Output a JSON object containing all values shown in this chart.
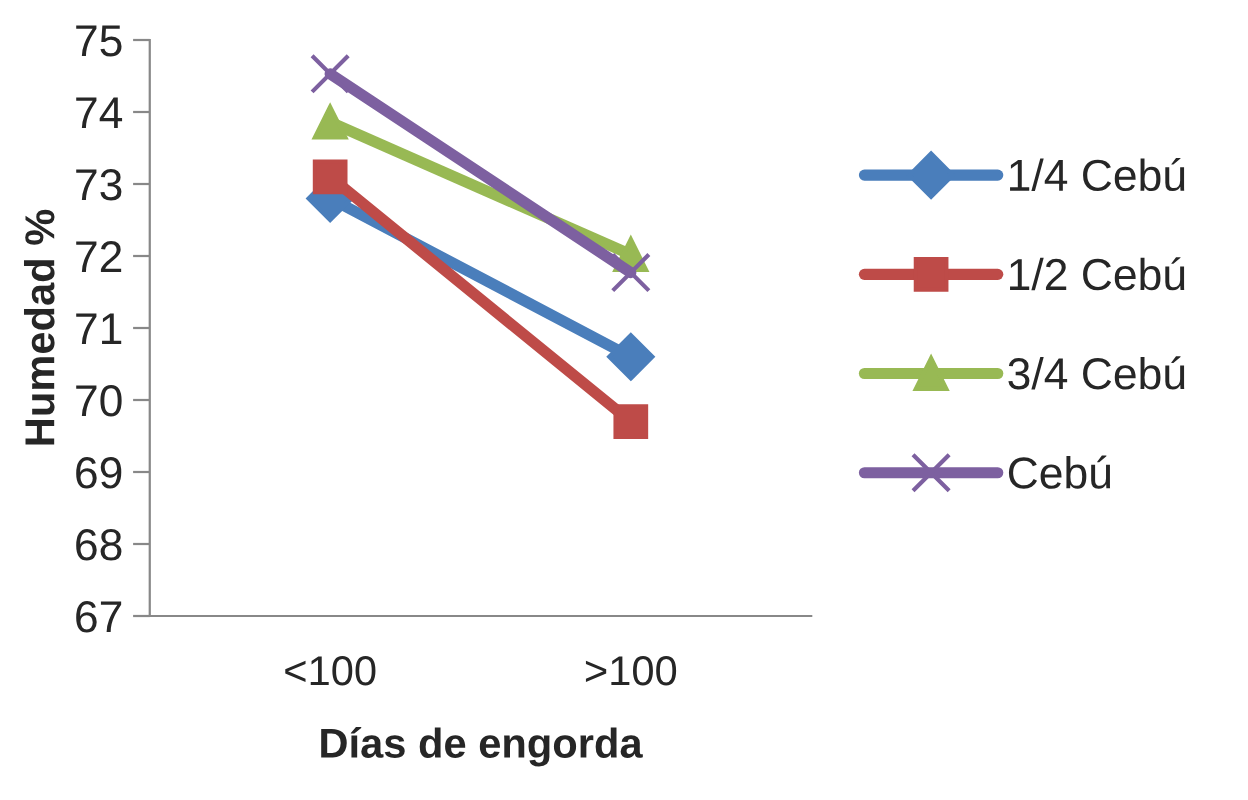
{
  "chart_data": {
    "type": "line",
    "xlabel": "Días de engorda",
    "ylabel": "Humedad %",
    "categories": [
      "<100",
      ">100"
    ],
    "series": [
      {
        "name": "1/4 Cebú",
        "color": "#4a7ebb",
        "marker": "diamond",
        "values": [
          72.8,
          70.6
        ]
      },
      {
        "name": "1/2 Cebú",
        "color": "#be4b48",
        "marker": "square",
        "values": [
          73.1,
          69.7
        ]
      },
      {
        "name": "3/4 Cebú",
        "color": "#98b954",
        "marker": "triangle",
        "values": [
          73.86,
          72.02
        ]
      },
      {
        "name": "Cebú",
        "color": "#7d60a0",
        "marker": "cross",
        "values": [
          74.53,
          71.77
        ]
      }
    ],
    "ylim": [
      67,
      75
    ],
    "yticks": [
      67,
      68,
      69,
      70,
      71,
      72,
      73,
      74,
      75
    ],
    "grid": false,
    "legend": "right"
  }
}
